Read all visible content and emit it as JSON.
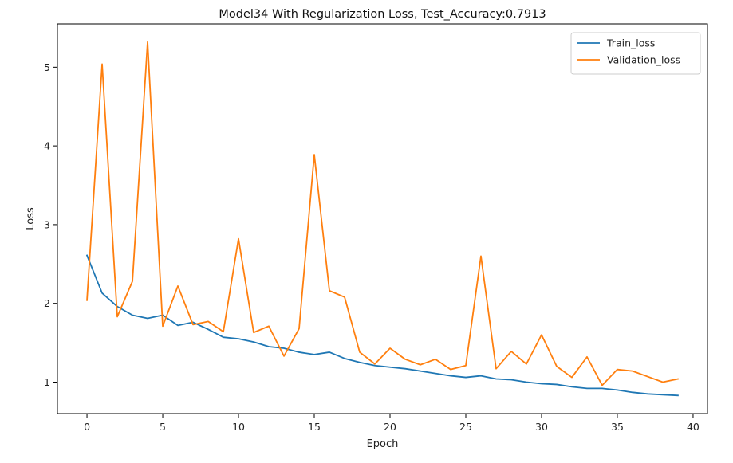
{
  "chart_data": {
    "type": "line",
    "title": "Model34 With Regularization Loss, Test_Accuracy:0.7913",
    "xlabel": "Epoch",
    "ylabel": "Loss",
    "xlim": [
      -1.95,
      40.95
    ],
    "ylim": [
      0.6,
      5.55
    ],
    "xticks": [
      0,
      5,
      10,
      15,
      20,
      25,
      30,
      35,
      40
    ],
    "yticks": [
      1,
      2,
      3,
      4,
      5
    ],
    "grid": false,
    "legend_position": "top-right",
    "x": [
      0,
      1,
      2,
      3,
      4,
      5,
      6,
      7,
      8,
      9,
      10,
      11,
      12,
      13,
      14,
      15,
      16,
      17,
      18,
      19,
      20,
      21,
      22,
      23,
      24,
      25,
      26,
      27,
      28,
      29,
      30,
      31,
      32,
      33,
      34,
      35,
      36,
      37,
      38,
      39
    ],
    "series": [
      {
        "name": "Train_loss",
        "color": "#1f77b4",
        "values": [
          2.61,
          2.13,
          1.96,
          1.85,
          1.81,
          1.85,
          1.72,
          1.76,
          1.67,
          1.57,
          1.55,
          1.51,
          1.45,
          1.43,
          1.38,
          1.35,
          1.38,
          1.3,
          1.25,
          1.21,
          1.19,
          1.17,
          1.14,
          1.11,
          1.08,
          1.06,
          1.08,
          1.04,
          1.03,
          1.0,
          0.98,
          0.97,
          0.94,
          0.92,
          0.92,
          0.9,
          0.87,
          0.85,
          0.84,
          0.83
        ]
      },
      {
        "name": "Validation_loss",
        "color": "#ff7f0e",
        "values": [
          2.04,
          5.04,
          1.83,
          2.28,
          5.32,
          1.71,
          2.22,
          1.73,
          1.77,
          1.64,
          2.82,
          1.63,
          1.71,
          1.33,
          1.68,
          3.89,
          2.16,
          2.08,
          1.38,
          1.23,
          1.43,
          1.29,
          1.22,
          1.29,
          1.16,
          1.21,
          2.6,
          1.17,
          1.39,
          1.23,
          1.6,
          1.2,
          1.06,
          1.32,
          0.96,
          1.16,
          1.14,
          1.07,
          1.0,
          1.04
        ]
      }
    ]
  }
}
